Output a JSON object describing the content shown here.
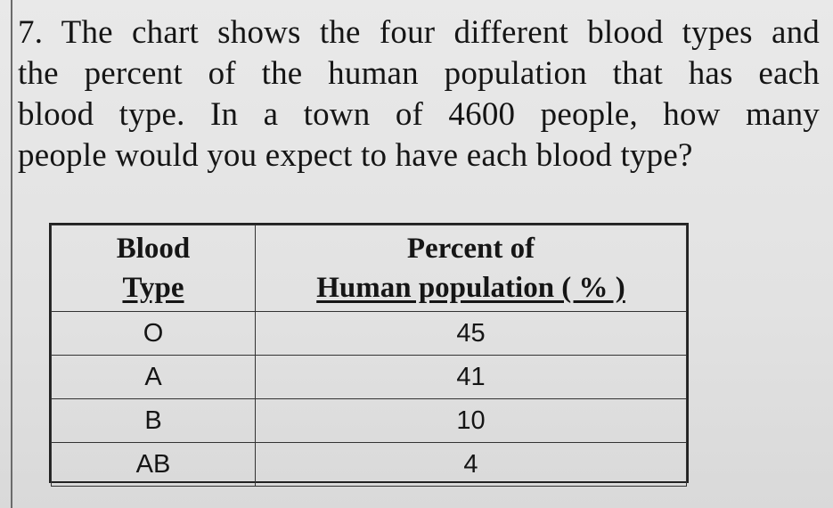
{
  "question": {
    "lines": [
      "7.  The chart shows the four different blood types and",
      "the  percent  of  the  human  population  that  has  each",
      "blood  type.  In  a  town  of  4600  people,  how  many",
      "people would you expect to have each blood type?"
    ]
  },
  "table": {
    "header": {
      "col1_line1": "Blood",
      "col1_line2": "Type",
      "col2_line1": "Percent of",
      "col2_line2": "Human population ( % )"
    },
    "rows": [
      {
        "type": "O",
        "percent": "45"
      },
      {
        "type": "A",
        "percent": "41"
      },
      {
        "type": "B",
        "percent": "10"
      },
      {
        "type": "AB",
        "percent": "4"
      }
    ]
  }
}
